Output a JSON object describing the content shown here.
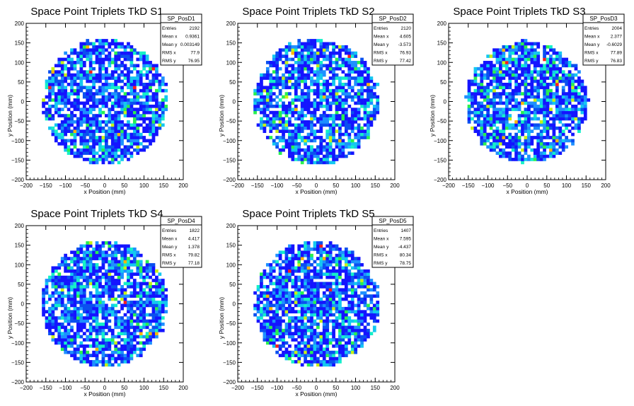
{
  "chart_data": [
    {
      "type": "heatmap",
      "title": "Space Point Triplets TkD S1",
      "xlabel": "x Position (mm)",
      "ylabel": "y Position (mm)",
      "xlim": [
        -200,
        200
      ],
      "ylim": [
        -200,
        200
      ],
      "x_ticks": [
        "−200",
        "−150",
        "−100",
        "−50",
        "0",
        "50",
        "100",
        "150",
        "200"
      ],
      "y_ticks": [
        "−200",
        "−150",
        "−100",
        "−50",
        "0",
        "50",
        "100",
        "150",
        "200"
      ],
      "disk_radius_mm": 160,
      "stats": {
        "name": "SP_PosD1",
        "rows": [
          {
            "label": "Entries",
            "value": "2192"
          },
          {
            "label": "Mean x",
            "value": "0.9361"
          },
          {
            "label": "Mean y",
            "value": "0.003149"
          },
          {
            "label": "RMS x",
            "value": "77.9"
          },
          {
            "label": "RMS y",
            "value": "76.95"
          }
        ]
      }
    },
    {
      "type": "heatmap",
      "title": "Space Point Triplets TkD S2",
      "xlabel": "x Position (mm)",
      "ylabel": "y Position (mm)",
      "xlim": [
        -200,
        200
      ],
      "ylim": [
        -200,
        200
      ],
      "x_ticks": [
        "−200",
        "−150",
        "−100",
        "−50",
        "0",
        "50",
        "100",
        "150",
        "200"
      ],
      "y_ticks": [
        "−200",
        "−150",
        "−100",
        "−50",
        "0",
        "50",
        "100",
        "150",
        "200"
      ],
      "disk_radius_mm": 160,
      "stats": {
        "name": "SP_PosD2",
        "rows": [
          {
            "label": "Entries",
            "value": "2120"
          },
          {
            "label": "Mean x",
            "value": "4.605"
          },
          {
            "label": "Mean y",
            "value": "-3.573"
          },
          {
            "label": "RMS x",
            "value": "76.93"
          },
          {
            "label": "RMS y",
            "value": "77.42"
          }
        ]
      }
    },
    {
      "type": "heatmap",
      "title": "Space Point Triplets TkD S3",
      "xlabel": "x Position (mm)",
      "ylabel": "y Position (mm)",
      "xlim": [
        -200,
        200
      ],
      "ylim": [
        -200,
        200
      ],
      "x_ticks": [
        "−200",
        "−150",
        "−100",
        "−50",
        "0",
        "50",
        "100",
        "150",
        "200"
      ],
      "y_ticks": [
        "−200",
        "−150",
        "−100",
        "−50",
        "0",
        "50",
        "100",
        "150",
        "200"
      ],
      "disk_radius_mm": 155,
      "stats": {
        "name": "SP_PosD3",
        "rows": [
          {
            "label": "Entries",
            "value": "2004"
          },
          {
            "label": "Mean x",
            "value": "2.377"
          },
          {
            "label": "Mean y",
            "value": "-0.6029"
          },
          {
            "label": "RMS x",
            "value": "77.89"
          },
          {
            "label": "RMS y",
            "value": "76.83"
          }
        ]
      }
    },
    {
      "type": "heatmap",
      "title": "Space Point Triplets TkD S4",
      "xlabel": "x Position (mm)",
      "ylabel": "y Position (mm)",
      "xlim": [
        -200,
        200
      ],
      "ylim": [
        -200,
        200
      ],
      "x_ticks": [
        "−200",
        "−150",
        "−100",
        "−50",
        "0",
        "50",
        "100",
        "150",
        "200"
      ],
      "y_ticks": [
        "−200",
        "−150",
        "−100",
        "−50",
        "0",
        "50",
        "100",
        "150",
        "200"
      ],
      "disk_radius_mm": 160,
      "stats": {
        "name": "SP_PosD4",
        "rows": [
          {
            "label": "Entries",
            "value": "1822"
          },
          {
            "label": "Mean x",
            "value": "4.417"
          },
          {
            "label": "Mean y",
            "value": "1.378"
          },
          {
            "label": "RMS x",
            "value": "79.82"
          },
          {
            "label": "RMS y",
            "value": "77.18"
          }
        ]
      }
    },
    {
      "type": "heatmap",
      "title": "Space Point Triplets TkD S5",
      "xlabel": "x Position (mm)",
      "ylabel": "y Position (mm)",
      "xlim": [
        -200,
        200
      ],
      "ylim": [
        -200,
        200
      ],
      "x_ticks": [
        "−200",
        "−150",
        "−100",
        "−50",
        "0",
        "50",
        "100",
        "150",
        "200"
      ],
      "y_ticks": [
        "−200",
        "−150",
        "−100",
        "−50",
        "0",
        "50",
        "100",
        "150",
        "200"
      ],
      "disk_radius_mm": 160,
      "stats": {
        "name": "SP_PosD5",
        "rows": [
          {
            "label": "Entries",
            "value": "1407"
          },
          {
            "label": "Mean x",
            "value": "7.595"
          },
          {
            "label": "Mean y",
            "value": "-4.437"
          },
          {
            "label": "RMS x",
            "value": "80.34"
          },
          {
            "label": "RMS y",
            "value": "78.75"
          }
        ]
      }
    }
  ],
  "colors": {
    "frame": "#000000",
    "palette": [
      "#ffffff",
      "#1414ff",
      "#0a50f0",
      "#1e90ff",
      "#14c8f0",
      "#14f0c8",
      "#28f050",
      "#c8f014",
      "#ffb400",
      "#ff1e1e"
    ]
  }
}
